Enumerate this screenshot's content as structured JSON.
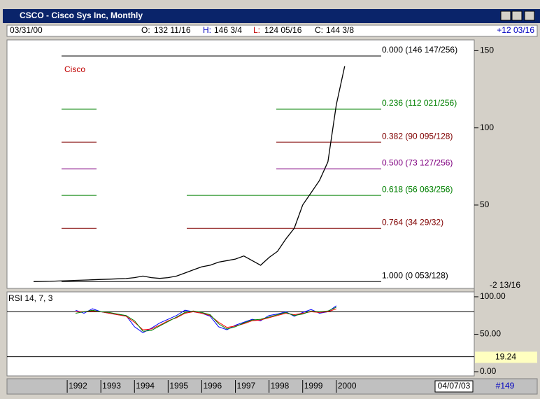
{
  "window": {
    "title": "CSCO - Cisco Sys Inc, Monthly"
  },
  "info": {
    "date": "03/31/00",
    "open_label": "O:",
    "open": "132 11/16",
    "high_label": "H:",
    "high": "146 3/4",
    "low_label": "L:",
    "low": "124 05/16",
    "close_label": "C:",
    "close": "144 3/8",
    "change": "+12 03/16"
  },
  "status": {
    "date": "04/07/03",
    "count": "#149"
  },
  "chart_data": [
    {
      "type": "line",
      "annotation": "Cisco",
      "tag_label": "-2 13/16",
      "ylim": [
        -4,
        157
      ],
      "yticks": [
        50,
        100,
        150
      ],
      "xlim": [
        1990.21,
        2004.1
      ],
      "xticks": [
        1992,
        1993,
        1994,
        1995,
        1996,
        1997,
        1998,
        1999,
        2000
      ],
      "price": {
        "name": "CSCO",
        "color": "#000000",
        "x": [
          1991.0,
          1991.25,
          1991.5,
          1991.75,
          1992.0,
          1992.25,
          1992.5,
          1992.75,
          1993.0,
          1993.25,
          1993.5,
          1993.75,
          1994.0,
          1994.25,
          1994.5,
          1994.75,
          1995.0,
          1995.25,
          1995.5,
          1995.75,
          1996.0,
          1996.25,
          1996.5,
          1996.75,
          1997.0,
          1997.25,
          1997.5,
          1997.75,
          1998.0,
          1998.25,
          1998.5,
          1998.75,
          1999.0,
          1999.25,
          1999.5,
          1999.75,
          2000.0,
          2000.25
        ],
        "values": [
          0.4,
          0.5,
          0.6,
          0.8,
          1.0,
          1.2,
          1.4,
          1.6,
          1.8,
          2.0,
          2.2,
          2.4,
          3.0,
          4.0,
          3.0,
          2.5,
          3,
          4,
          6,
          8,
          10,
          11,
          13,
          14,
          15,
          17,
          14,
          11,
          16,
          20,
          28,
          35,
          50,
          58,
          66,
          78,
          115,
          140
        ]
      },
      "levels": [
        {
          "label": "0.000 (146 147/256)",
          "value": 146.57,
          "color": "#000000"
        },
        {
          "label": "0.236 (112 021/256)",
          "value": 112.08,
          "color": "#008000"
        },
        {
          "label": "0.382 (90 095/128)",
          "value": 90.74,
          "color": "#800000"
        },
        {
          "label": "0.500 (73 127/256)",
          "value": 73.5,
          "color": "#800080"
        },
        {
          "label": "0.618 (56 063/256)",
          "value": 56.25,
          "color": "#008000"
        },
        {
          "label": "0.764 (34 29/32)",
          "value": 34.91,
          "color": "#800000"
        },
        {
          "label": "1.000 (0 053/128)",
          "value": 0.41,
          "color": "#000000"
        }
      ]
    },
    {
      "type": "line",
      "title": "RSI 14, 7, 3",
      "ylim": [
        -5.6,
        106.5
      ],
      "yticks": [
        {
          "value": 100,
          "label": "100.00"
        },
        {
          "value": 50,
          "label": "50.00"
        },
        {
          "value": 0,
          "label": "0.00"
        }
      ],
      "levels": [
        80,
        20
      ],
      "value_tag": 19.24,
      "x": [
        1992.25,
        1992.5,
        1992.75,
        1993.0,
        1993.25,
        1993.5,
        1993.75,
        1994.0,
        1994.25,
        1994.5,
        1994.75,
        1995.0,
        1995.25,
        1995.5,
        1995.75,
        1996.0,
        1996.25,
        1996.5,
        1996.75,
        1997.0,
        1997.25,
        1997.5,
        1997.75,
        1998.0,
        1998.25,
        1998.5,
        1998.75,
        1999.0,
        1999.25,
        1999.5,
        1999.75,
        2000.0
      ],
      "series": [
        {
          "color": "#0000ff",
          "values": [
            82,
            78,
            84,
            80,
            78,
            76,
            75,
            60,
            52,
            58,
            65,
            70,
            75,
            82,
            80,
            78,
            74,
            60,
            56,
            62,
            66,
            70,
            68,
            75,
            77,
            80,
            74,
            79,
            83,
            78,
            80,
            88
          ]
        },
        {
          "color": "#ff0000",
          "values": [
            80,
            80,
            81,
            80,
            78,
            76,
            74,
            66,
            56,
            57,
            62,
            68,
            72,
            78,
            80,
            78,
            75,
            66,
            59,
            61,
            64,
            68,
            69,
            72,
            75,
            78,
            76,
            78,
            80,
            79,
            80,
            84
          ]
        },
        {
          "color": "#008000",
          "values": [
            78,
            80,
            82,
            80,
            79,
            77,
            75,
            68,
            54,
            55,
            61,
            67,
            73,
            79,
            81,
            79,
            76,
            64,
            57,
            60,
            65,
            69,
            70,
            73,
            76,
            79,
            75,
            77,
            81,
            80,
            81,
            86
          ]
        }
      ]
    }
  ]
}
